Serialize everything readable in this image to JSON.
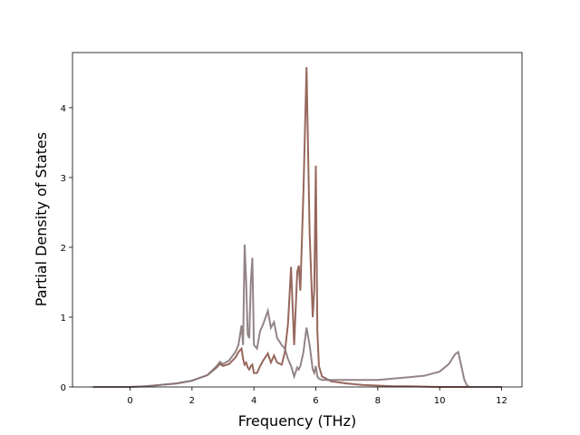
{
  "chart_data": {
    "type": "line",
    "x_label": "Frequency (THz)",
    "y_label": "Partial Density of States",
    "x": [
      -1.2,
      0,
      0.5,
      1,
      1.5,
      2,
      2.5,
      2.8,
      2.9,
      3.0,
      3.2,
      3.4,
      3.5,
      3.6,
      3.65,
      3.7,
      3.75,
      3.8,
      3.85,
      3.9,
      3.95,
      4.0,
      4.1,
      4.2,
      4.3,
      4.45,
      4.55,
      4.65,
      4.75,
      4.9,
      5.0,
      5.1,
      5.2,
      5.3,
      5.4,
      5.45,
      5.5,
      5.6,
      5.7,
      5.8,
      5.9,
      5.95,
      6.0,
      6.05,
      6.1,
      6.2,
      6.5,
      7,
      7.5,
      8,
      8.5,
      9,
      9.5,
      10,
      10.3,
      10.5,
      10.6,
      10.7,
      10.8,
      10.9,
      11,
      12
    ],
    "series": [
      {
        "color": "#8c564b",
        "values": [
          0,
          0,
          0.01,
          0.03,
          0.05,
          0.09,
          0.17,
          0.28,
          0.33,
          0.3,
          0.33,
          0.42,
          0.5,
          0.55,
          0.4,
          0.32,
          0.35,
          0.28,
          0.25,
          0.3,
          0.32,
          0.2,
          0.2,
          0.3,
          0.38,
          0.48,
          0.35,
          0.45,
          0.35,
          0.32,
          0.5,
          0.9,
          1.72,
          0.6,
          1.65,
          1.74,
          1.38,
          2.8,
          4.58,
          2.2,
          1.0,
          1.4,
          3.17,
          0.8,
          0.3,
          0.15,
          0.08,
          0.05,
          0.03,
          0.02,
          0.01,
          0.01,
          0.005,
          0,
          0,
          0,
          0,
          0,
          0,
          0,
          0,
          0
        ]
      },
      {
        "color": "#877779",
        "values": [
          0,
          0,
          0.01,
          0.03,
          0.05,
          0.09,
          0.17,
          0.3,
          0.36,
          0.33,
          0.38,
          0.5,
          0.6,
          0.88,
          0.6,
          2.04,
          1.5,
          0.75,
          0.7,
          1.5,
          1.85,
          0.6,
          0.55,
          0.8,
          0.9,
          1.09,
          0.85,
          0.93,
          0.7,
          0.6,
          0.55,
          0.4,
          0.3,
          0.15,
          0.28,
          0.25,
          0.3,
          0.5,
          0.85,
          0.6,
          0.25,
          0.2,
          0.3,
          0.15,
          0.12,
          0.1,
          0.1,
          0.1,
          0.1,
          0.1,
          0.12,
          0.14,
          0.16,
          0.22,
          0.33,
          0.47,
          0.5,
          0.3,
          0.1,
          0.01,
          0,
          0
        ]
      }
    ],
    "xlim": [
      -1.86,
      12.66
    ],
    "xticks": [
      0,
      2,
      4,
      6,
      8,
      10,
      12
    ],
    "ylim": [
      0,
      4.79
    ],
    "yticks": [
      0,
      1,
      2,
      3,
      4
    ],
    "grid": false
  }
}
